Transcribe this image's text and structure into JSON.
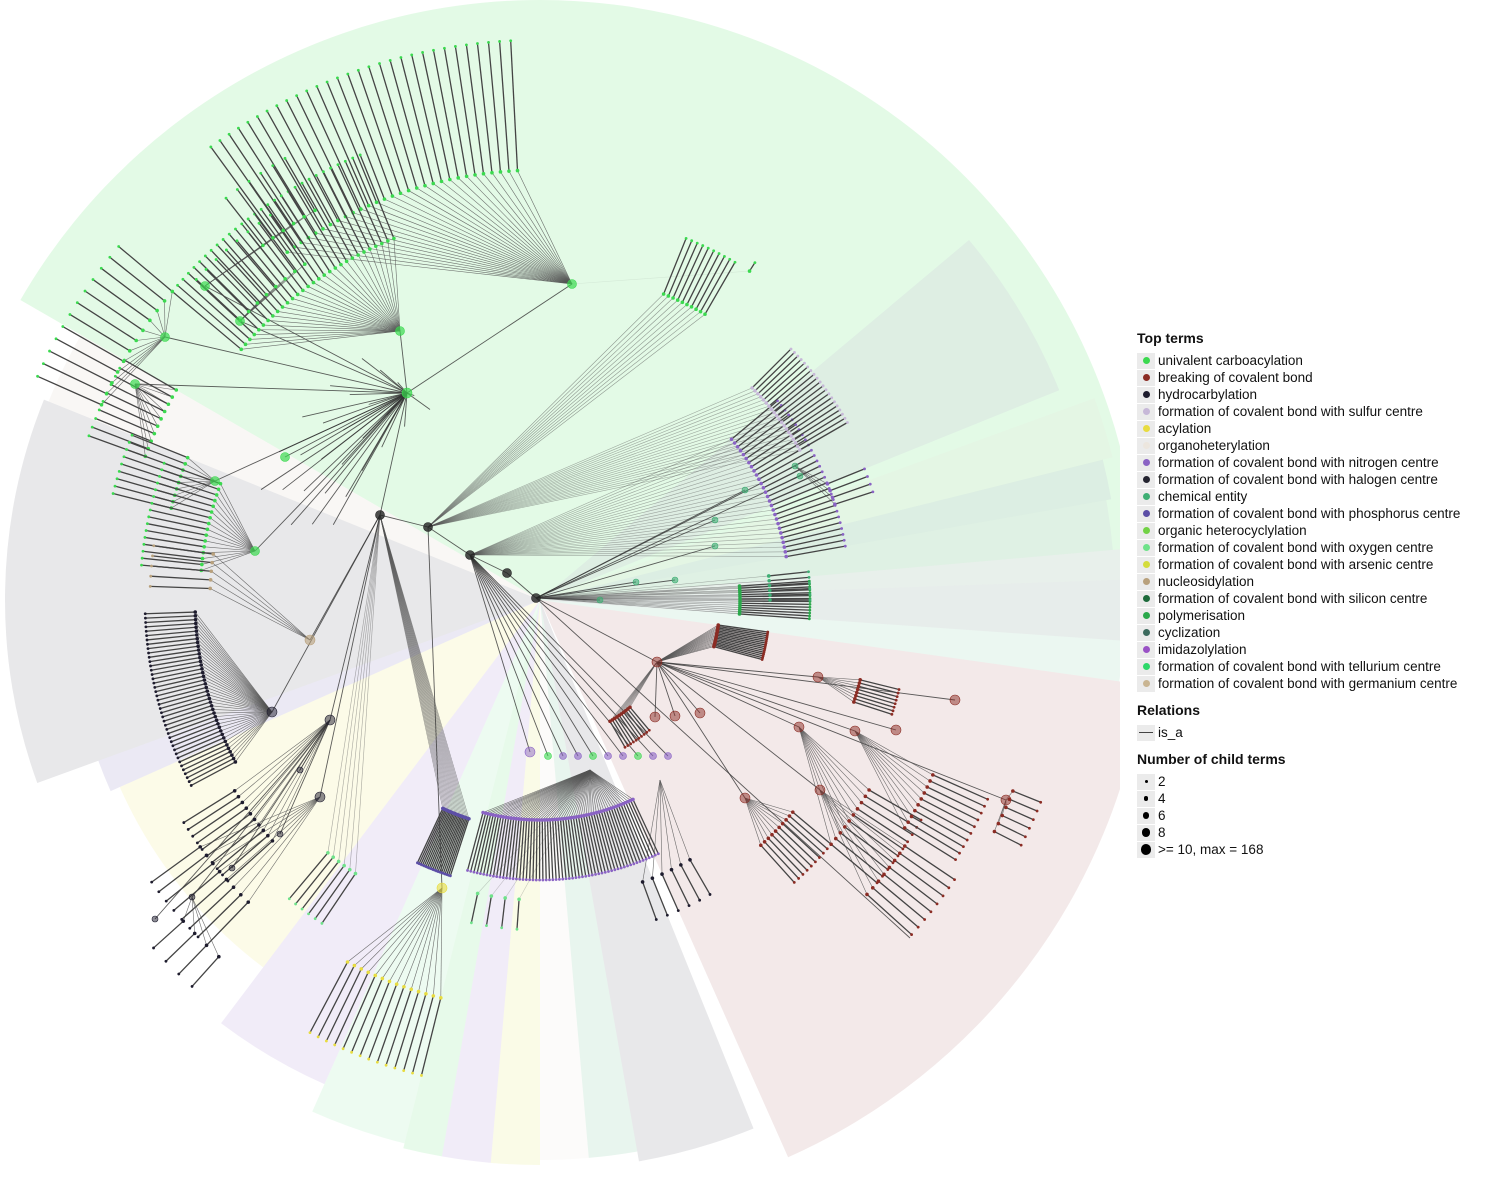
{
  "legend": {
    "top_terms_title": "Top terms",
    "top_terms": [
      {
        "label": "univalent carboacylation",
        "color": "#3bd94f"
      },
      {
        "label": "breaking of covalent bond",
        "color": "#8b2c24"
      },
      {
        "label": "hydrocarbylation",
        "color": "#1e1c2e"
      },
      {
        "label": "formation of covalent bond with sulfur centre",
        "color": "#c7b8d8"
      },
      {
        "label": "acylation",
        "color": "#e8dc40"
      },
      {
        "label": "organoheterylation",
        "color": "#ece6de"
      },
      {
        "label": "formation of covalent bond with nitrogen centre",
        "color": "#8a63c4"
      },
      {
        "label": "formation of covalent bond with halogen centre",
        "color": "#242430"
      },
      {
        "label": "chemical entity",
        "color": "#3fae74"
      },
      {
        "label": "formation of covalent bond with phosphorus centre",
        "color": "#5c4ea6"
      },
      {
        "label": "organic heterocyclylation",
        "color": "#72d245"
      },
      {
        "label": "formation of covalent bond with oxygen centre",
        "color": "#6fe28a"
      },
      {
        "label": "formation of covalent bond with arsenic centre",
        "color": "#d4dc3c"
      },
      {
        "label": "nucleosidylation",
        "color": "#b8a07c"
      },
      {
        "label": "formation of covalent bond with silicon centre",
        "color": "#1d6a3a"
      },
      {
        "label": "polymerisation",
        "color": "#2aa84a"
      },
      {
        "label": "cyclization",
        "color": "#3c6a5e"
      },
      {
        "label": "imidazolylation",
        "color": "#9a52c6"
      },
      {
        "label": "formation of covalent bond with tellurium centre",
        "color": "#2ed86a"
      },
      {
        "label": "formation of covalent bond with germanium centre",
        "color": "#c9b592"
      }
    ],
    "relations_title": "Relations",
    "relations": [
      {
        "label": "is_a"
      }
    ],
    "size_title": "Number of child terms",
    "sizes": [
      {
        "label": "2",
        "value": 2
      },
      {
        "label": "4",
        "value": 4
      },
      {
        "label": "6",
        "value": 6
      },
      {
        "label": "8",
        "value": 8
      },
      {
        "label": ">= 10, max = 168",
        "value": 10
      }
    ]
  }
}
